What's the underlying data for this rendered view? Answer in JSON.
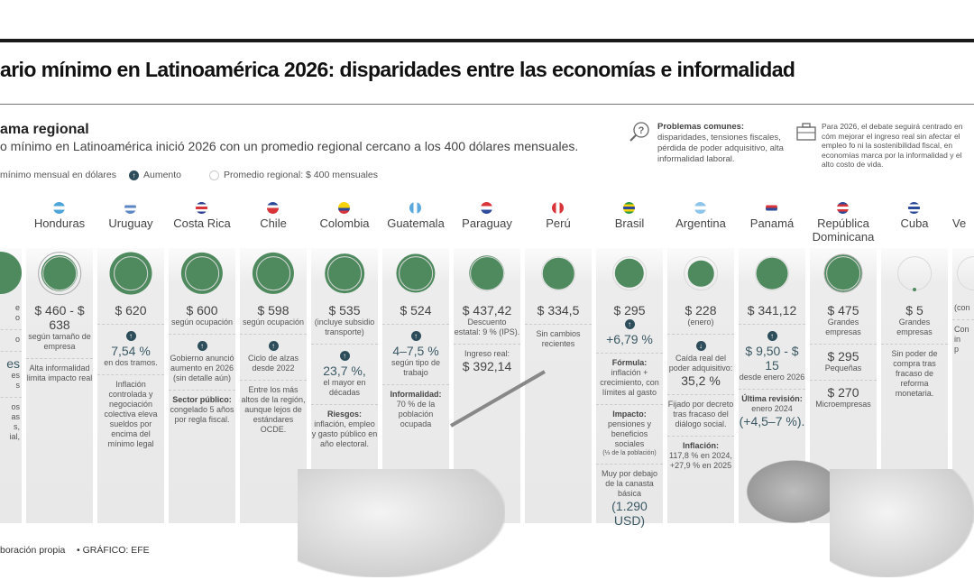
{
  "header": {
    "title": "ario mínimo en Latinoamérica 2026: disparidades entre las economías e informalidad"
  },
  "intro": {
    "section_title": "ama regional",
    "subtitle": "o mínimo en Latinoamérica inició 2026 con un promedio regional cercano a los 400 dólares mensuales."
  },
  "legend": {
    "salary": "mínimo mensual en dólares",
    "increase": "Aumento",
    "average": "Promedio regional: $ 400 mensuales"
  },
  "info": {
    "problems_title": "Problemas comunes:",
    "problems_lines": [
      "disparidades, tensiones fiscales,",
      "pérdida de poder adquisitivo, alta",
      "informalidad laboral."
    ],
    "outlook_lines": [
      "Para 2026, el debate seguirá centrado en cóm",
      "mejorar el ingreso real sin afectar el empleo fo",
      "ni la sostenibilidad fiscal, en economías marca",
      "por la informalidad y el alto costo de vida."
    ]
  },
  "colors": {
    "circle_fill": "#4f8a5f",
    "arrow_badge": "#2e4d5a",
    "panel": "#e8e8e8"
  },
  "regional_average_usd": 400,
  "columns": [
    {
      "name": "",
      "flag": [],
      "value": null,
      "partial": true,
      "blocks": [
        [
          {
            "t": "small",
            "text": "e"
          },
          {
            "t": "small",
            "text": "o"
          }
        ],
        [
          {
            "t": "small",
            "text": "o"
          }
        ],
        [
          {
            "t": "big",
            "text": "es"
          },
          {
            "t": "small",
            "text": "es"
          },
          {
            "t": "small",
            "text": "s"
          }
        ],
        [
          {
            "t": "small",
            "text": "os"
          },
          {
            "t": "small",
            "text": "as"
          },
          {
            "t": "small",
            "text": "s,"
          },
          {
            "t": "small",
            "text": "ial,"
          }
        ]
      ]
    },
    {
      "name": "Honduras",
      "flag": [
        "#4ea3d8",
        "#ffffff",
        "#4ea3d8"
      ],
      "value": 460,
      "rings": [
        638
      ],
      "blocks": [
        [
          {
            "t": "value",
            "text": "$ 460 - $ 638"
          },
          {
            "t": "small",
            "text": "según tamaño de empresa"
          }
        ],
        [
          {
            "t": "small",
            "text": "Alta informalidad limita impacto real"
          }
        ]
      ]
    },
    {
      "name": "Uruguay",
      "flag": [
        "#ffffff",
        "#5b86c4",
        "#ffffff",
        "#5b86c4"
      ],
      "value": 620,
      "blocks": [
        [
          {
            "t": "value",
            "text": "$ 620"
          }
        ],
        [
          {
            "t": "arrow",
            "dir": "up"
          },
          {
            "t": "big",
            "text": "7,54 %"
          },
          {
            "t": "small",
            "text": "en dos tramos."
          }
        ],
        [
          {
            "t": "small",
            "text": "Inflación controlada y negociación colectiva eleva sueldos por encima del mínimo legal"
          }
        ]
      ]
    },
    {
      "name": "Costa Rica",
      "flag": [
        "#2c3e8f",
        "#ffffff",
        "#d9343a",
        "#ffffff",
        "#2c3e8f"
      ],
      "value": 600,
      "blocks": [
        [
          {
            "t": "value",
            "text": "$ 600"
          },
          {
            "t": "small",
            "text": "según ocupación"
          }
        ],
        [
          {
            "t": "arrow",
            "dir": "up"
          },
          {
            "t": "small",
            "text": "Gobierno anunció aumento en 2026 (sin detalle aún)"
          }
        ],
        [
          {
            "t": "bold",
            "text": "Sector público:"
          },
          {
            "t": "small",
            "text": "congelado 5 años por regla fiscal."
          }
        ]
      ]
    },
    {
      "name": "Chile",
      "flag": [
        "#2c4a9a",
        "#ffffff",
        "#d9343a",
        "#d9343a"
      ],
      "value": 598,
      "blocks": [
        [
          {
            "t": "value",
            "text": "$ 598"
          },
          {
            "t": "small",
            "text": "según ocupación"
          }
        ],
        [
          {
            "t": "arrow",
            "dir": "up"
          },
          {
            "t": "small",
            "text": "Ciclo de alzas desde 2022"
          }
        ],
        [
          {
            "t": "small",
            "text": "Entre los más altos de la región, aunque lejos de estándares OCDE."
          }
        ]
      ]
    },
    {
      "name": "Colombia",
      "flag": [
        "#f5d20c",
        "#f5d20c",
        "#2c4a9a",
        "#d9343a"
      ],
      "value": 535,
      "blocks": [
        [
          {
            "t": "value",
            "text": "$ 535"
          },
          {
            "t": "small",
            "text": "(incluye subsidio transporte)"
          }
        ],
        [
          {
            "t": "arrow",
            "dir": "up"
          },
          {
            "t": "big",
            "text": "23,7 %,"
          },
          {
            "t": "small",
            "text": "el mayor en décadas"
          }
        ],
        [
          {
            "t": "bold",
            "text": "Riesgos:"
          },
          {
            "t": "small",
            "text": "inflación, empleo y gasto público en año electoral."
          }
        ]
      ]
    },
    {
      "name": "Guatemala",
      "flag": [
        "#5aa8dd",
        "#ffffff",
        "#5aa8dd"
      ],
      "flag_dir": "vertical",
      "value": 524,
      "blocks": [
        [
          {
            "t": "value",
            "text": "$ 524"
          }
        ],
        [
          {
            "t": "arrow",
            "dir": "up"
          },
          {
            "t": "big",
            "text": "4–7,5 %"
          },
          {
            "t": "small",
            "text": "según tipo de trabajo"
          }
        ],
        [
          {
            "t": "bold",
            "text": "Informalidad:"
          },
          {
            "t": "small",
            "text": "70 % de la población ocupada"
          }
        ]
      ]
    },
    {
      "name": "Paraguay",
      "flag": [
        "#d9343a",
        "#ffffff",
        "#2c4a9a"
      ],
      "value": 437.42,
      "rings": [
        400
      ],
      "blocks": [
        [
          {
            "t": "value",
            "text": "$ 437,42"
          },
          {
            "t": "small",
            "text": "Descuento estatal: 9 % (IPS)."
          }
        ],
        [
          {
            "t": "small",
            "text": "Ingreso real:"
          },
          {
            "t": "value",
            "text": "$ 392,14"
          }
        ]
      ]
    },
    {
      "name": "Perú",
      "flag": [
        "#d9343a",
        "#ffffff",
        "#d9343a"
      ],
      "flag_dir": "vertical",
      "value": 334.5,
      "blocks": [
        [
          {
            "t": "value",
            "text": "$ 334,5"
          }
        ],
        [
          {
            "t": "small",
            "text": "Sin cambios recientes"
          }
        ]
      ]
    },
    {
      "name": "Brasil",
      "flag": [
        "#2e9a48",
        "#f5d20c",
        "#2c4a9a",
        "#f5d20c",
        "#2e9a48"
      ],
      "value": 295,
      "blocks": [
        [
          {
            "t": "value",
            "text": "$ 295"
          },
          {
            "t": "arrow",
            "dir": "up"
          },
          {
            "t": "big",
            "text": "+6,79 %"
          }
        ],
        [
          {
            "t": "bold",
            "text": "Fórmula:"
          },
          {
            "t": "small",
            "text": "inflación + crecimiento, con límites al gasto"
          }
        ],
        [
          {
            "t": "bold",
            "text": "Impacto:"
          },
          {
            "t": "small",
            "text": "pensiones y beneficios sociales"
          },
          {
            "t": "tiny",
            "text": "(⅓ de la población)"
          }
        ],
        [
          {
            "t": "small",
            "text": "Muy por debajo de la canasta básica"
          },
          {
            "t": "big",
            "text": "(1.290 USD)"
          }
        ]
      ]
    },
    {
      "name": "Argentina",
      "flag": [
        "#8cc4ea",
        "#ffffff",
        "#8cc4ea"
      ],
      "value": 228,
      "blocks": [
        [
          {
            "t": "value",
            "text": "$ 228"
          },
          {
            "t": "small",
            "text": "(enero)"
          }
        ],
        [
          {
            "t": "arrow",
            "dir": "down"
          },
          {
            "t": "small",
            "text": "Caída real del poder adquisitivo:"
          },
          {
            "t": "value",
            "text": "35,2 %"
          }
        ],
        [
          {
            "t": "small",
            "text": "Fijado por decreto tras fracaso del diálogo social."
          }
        ],
        [
          {
            "t": "bold",
            "text": "Inflación:"
          },
          {
            "t": "small",
            "text": "117,8 % en 2024, +27,9 % en 2025"
          }
        ]
      ]
    },
    {
      "name": "Panamá",
      "flag": [
        "#ffffff",
        "#d9343a",
        "#2c4a9a",
        "#ffffff"
      ],
      "value": 341.12,
      "blocks": [
        [
          {
            "t": "value",
            "text": "$ 341,12"
          }
        ],
        [
          {
            "t": "arrow",
            "dir": "up"
          },
          {
            "t": "big",
            "text": "$ 9,50 - $ 15"
          },
          {
            "t": "small",
            "text": "desde enero 2026"
          }
        ],
        [
          {
            "t": "bold",
            "text": "Última revisión:"
          },
          {
            "t": "small",
            "text": "enero 2024"
          },
          {
            "t": "big",
            "text": "(+4,5–7 %)."
          }
        ]
      ]
    },
    {
      "name": "República Dominicana",
      "flag": [
        "#2c4a9a",
        "#d9343a",
        "#ffffff",
        "#d9343a",
        "#2c4a9a"
      ],
      "value": 475,
      "rings": [
        520,
        400
      ],
      "blocks": [
        [
          {
            "t": "value",
            "text": "$ 475"
          },
          {
            "t": "small",
            "text": "Grandes empresas"
          }
        ],
        [
          {
            "t": "value",
            "text": "$ 295"
          },
          {
            "t": "small",
            "text": "Pequeñas"
          }
        ],
        [
          {
            "t": "value",
            "text": "$ 270"
          },
          {
            "t": "small",
            "text": "Microempresas"
          }
        ]
      ]
    },
    {
      "name": "Cuba",
      "flag": [
        "#2c4a9a",
        "#ffffff",
        "#2c4a9a",
        "#ffffff",
        "#2c4a9a"
      ],
      "value": 5,
      "blocks": [
        [
          {
            "t": "value",
            "text": "$ 5"
          },
          {
            "t": "small",
            "text": "Grandes empresas"
          }
        ],
        [
          {
            "t": "small",
            "text": "Sin poder de compra tras fracaso de reforma monetaria."
          }
        ]
      ]
    },
    {
      "name": "Ve",
      "flag": [],
      "value": null,
      "blocks": [
        [
          {
            "t": "small",
            "text": "(con"
          }
        ],
        [
          {
            "t": "small",
            "text": "Con"
          },
          {
            "t": "small",
            "text": "in"
          },
          {
            "t": "small",
            "text": "p"
          }
        ]
      ]
    }
  ],
  "footer": {
    "source": "boración propia",
    "graphic": "• GRÁFICO: EFE"
  }
}
